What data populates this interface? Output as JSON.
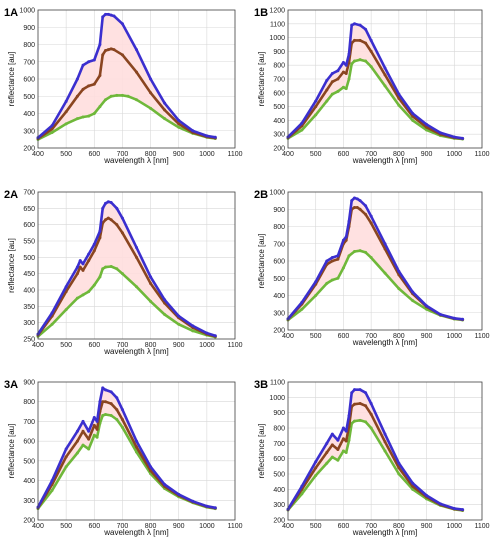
{
  "figure": {
    "xlabel": "wavelength λ  [nm]",
    "ylabel": "reflectance [au]"
  },
  "chart_data": [
    {
      "type": "line",
      "panel": "1A",
      "xlabel": "wavelength λ  [nm]",
      "ylabel": "reflectance [au]",
      "xlim": [
        400,
        1100
      ],
      "ylim": [
        200,
        1000
      ],
      "xticks": [
        400,
        500,
        600,
        700,
        800,
        900,
        1000,
        1100
      ],
      "yticks": [
        200,
        300,
        400,
        500,
        600,
        700,
        800,
        900,
        1000
      ],
      "grid": true,
      "band_fill": "#ffdede",
      "series": [
        {
          "color": "#3b2fcf",
          "x": [
            400,
            450,
            500,
            540,
            560,
            580,
            600,
            620,
            630,
            640,
            650,
            660,
            670,
            700,
            750,
            800,
            850,
            900,
            950,
            1000,
            1030
          ],
          "y": [
            260,
            330,
            470,
            600,
            680,
            700,
            710,
            800,
            960,
            975,
            975,
            970,
            965,
            920,
            770,
            600,
            460,
            360,
            300,
            270,
            262
          ]
        },
        {
          "color": "#8a4520",
          "x": [
            400,
            450,
            500,
            540,
            560,
            580,
            600,
            620,
            630,
            640,
            650,
            660,
            670,
            700,
            750,
            800,
            850,
            900,
            950,
            1000,
            1030
          ],
          "y": [
            255,
            310,
            410,
            500,
            540,
            560,
            570,
            620,
            740,
            765,
            770,
            775,
            770,
            740,
            640,
            520,
            420,
            340,
            290,
            265,
            258
          ]
        },
        {
          "color": "#6fb83a",
          "x": [
            400,
            450,
            500,
            540,
            560,
            580,
            600,
            620,
            640,
            660,
            680,
            700,
            720,
            750,
            800,
            850,
            900,
            950,
            1000,
            1030
          ],
          "y": [
            250,
            290,
            340,
            370,
            380,
            385,
            400,
            440,
            480,
            500,
            505,
            505,
            500,
            480,
            430,
            370,
            320,
            285,
            262,
            255
          ]
        }
      ]
    },
    {
      "type": "line",
      "panel": "1B",
      "xlabel": "wavelength λ  [nm]",
      "ylabel": "reflectance [au]",
      "xlim": [
        400,
        1100
      ],
      "ylim": [
        200,
        1200
      ],
      "xticks": [
        400,
        500,
        600,
        700,
        800,
        900,
        1000,
        1100
      ],
      "yticks": [
        200,
        300,
        400,
        500,
        600,
        700,
        800,
        900,
        1000,
        1100,
        1200
      ],
      "grid": true,
      "band_fill": "#ffdede",
      "series": [
        {
          "color": "#3b2fcf",
          "x": [
            400,
            450,
            500,
            540,
            560,
            580,
            600,
            610,
            620,
            630,
            640,
            660,
            680,
            700,
            750,
            800,
            850,
            900,
            950,
            1000,
            1030
          ],
          "y": [
            280,
            380,
            540,
            690,
            740,
            760,
            820,
            800,
            880,
            1090,
            1100,
            1090,
            1060,
            980,
            780,
            590,
            450,
            370,
            310,
            280,
            270
          ]
        },
        {
          "color": "#8a4520",
          "x": [
            400,
            450,
            500,
            540,
            560,
            580,
            600,
            610,
            620,
            630,
            640,
            660,
            680,
            700,
            750,
            800,
            850,
            900,
            950,
            1000,
            1030
          ],
          "y": [
            275,
            360,
            500,
            620,
            680,
            700,
            750,
            740,
            820,
            960,
            980,
            980,
            960,
            900,
            730,
            560,
            430,
            350,
            300,
            275,
            268
          ]
        },
        {
          "color": "#6fb83a",
          "x": [
            400,
            450,
            500,
            540,
            560,
            580,
            600,
            610,
            620,
            630,
            640,
            660,
            680,
            700,
            750,
            800,
            850,
            900,
            950,
            1000,
            1030
          ],
          "y": [
            270,
            330,
            440,
            540,
            590,
            610,
            640,
            630,
            700,
            810,
            830,
            840,
            830,
            790,
            650,
            510,
            400,
            330,
            290,
            270,
            265
          ]
        }
      ]
    },
    {
      "type": "line",
      "panel": "2A",
      "xlabel": "wavelength λ  [nm]",
      "ylabel": "reflectance [au]",
      "xlim": [
        400,
        1100
      ],
      "ylim": [
        250,
        700
      ],
      "xticks": [
        400,
        500,
        600,
        700,
        800,
        900,
        1000,
        1100
      ],
      "yticks": [
        250,
        300,
        350,
        400,
        450,
        500,
        550,
        600,
        650,
        700
      ],
      "grid": true,
      "band_fill": "#ffdede",
      "series": [
        {
          "color": "#3b2fcf",
          "x": [
            400,
            450,
            500,
            540,
            550,
            560,
            580,
            600,
            620,
            630,
            640,
            650,
            660,
            680,
            700,
            750,
            800,
            850,
            900,
            950,
            1000,
            1030
          ],
          "y": [
            265,
            330,
            410,
            470,
            490,
            480,
            510,
            540,
            580,
            650,
            665,
            670,
            668,
            650,
            620,
            530,
            440,
            370,
            320,
            290,
            268,
            260
          ]
        },
        {
          "color": "#8a4520",
          "x": [
            400,
            450,
            500,
            540,
            550,
            560,
            580,
            600,
            620,
            630,
            640,
            650,
            660,
            680,
            700,
            750,
            800,
            850,
            900,
            950,
            1000,
            1030
          ],
          "y": [
            262,
            320,
            395,
            450,
            470,
            460,
            490,
            520,
            560,
            605,
            615,
            620,
            615,
            600,
            575,
            500,
            420,
            360,
            315,
            285,
            265,
            258
          ]
        },
        {
          "color": "#6fb83a",
          "x": [
            400,
            450,
            500,
            540,
            560,
            580,
            600,
            620,
            630,
            640,
            660,
            680,
            700,
            750,
            800,
            850,
            900,
            950,
            1000,
            1030
          ],
          "y": [
            258,
            295,
            340,
            375,
            385,
            395,
            415,
            440,
            465,
            470,
            472,
            465,
            450,
            410,
            365,
            325,
            295,
            275,
            262,
            256
          ]
        }
      ]
    },
    {
      "type": "line",
      "panel": "2B",
      "xlabel": "wavelength λ  [nm]",
      "ylabel": "reflectance [au]",
      "xlim": [
        400,
        1100
      ],
      "ylim": [
        200,
        1000
      ],
      "xticks": [
        400,
        500,
        600,
        700,
        800,
        900,
        1000,
        1100
      ],
      "yticks": [
        200,
        300,
        400,
        500,
        600,
        700,
        800,
        900,
        1000
      ],
      "grid": true,
      "band_fill": "#ffdede",
      "series": [
        {
          "color": "#3b2fcf",
          "x": [
            400,
            450,
            500,
            540,
            560,
            580,
            600,
            610,
            620,
            630,
            640,
            650,
            660,
            680,
            700,
            750,
            800,
            850,
            900,
            950,
            1000,
            1030
          ],
          "y": [
            265,
            360,
            480,
            600,
            620,
            630,
            720,
            740,
            830,
            950,
            965,
            960,
            950,
            920,
            860,
            700,
            540,
            420,
            340,
            290,
            268,
            262
          ]
        },
        {
          "color": "#8a4520",
          "x": [
            400,
            450,
            500,
            540,
            560,
            580,
            600,
            610,
            620,
            630,
            640,
            650,
            660,
            680,
            700,
            750,
            800,
            850,
            900,
            950,
            1000,
            1030
          ],
          "y": [
            262,
            350,
            465,
            580,
            600,
            610,
            700,
            720,
            800,
            900,
            910,
            910,
            900,
            870,
            820,
            670,
            520,
            410,
            335,
            288,
            266,
            260
          ]
        },
        {
          "color": "#6fb83a",
          "x": [
            400,
            450,
            500,
            540,
            560,
            580,
            600,
            620,
            640,
            660,
            680,
            700,
            750,
            800,
            850,
            900,
            950,
            1000,
            1030
          ],
          "y": [
            258,
            320,
            400,
            470,
            490,
            500,
            560,
            630,
            655,
            660,
            650,
            620,
            530,
            440,
            370,
            320,
            285,
            264,
            258
          ]
        }
      ]
    },
    {
      "type": "line",
      "panel": "3A",
      "xlabel": "wavelength λ  [nm]",
      "ylabel": "reflectance [au]",
      "xlim": [
        400,
        1100
      ],
      "ylim": [
        200,
        900
      ],
      "xticks": [
        400,
        500,
        600,
        700,
        800,
        900,
        1000,
        1100
      ],
      "yticks": [
        200,
        300,
        400,
        500,
        600,
        700,
        800,
        900
      ],
      "grid": true,
      "band_fill": "#ffdede",
      "series": [
        {
          "color": "#3b2fcf",
          "x": [
            400,
            450,
            500,
            540,
            560,
            580,
            600,
            610,
            620,
            630,
            640,
            660,
            680,
            700,
            750,
            800,
            850,
            900,
            950,
            1000,
            1030
          ],
          "y": [
            265,
            400,
            560,
            650,
            700,
            650,
            720,
            700,
            800,
            870,
            860,
            850,
            820,
            760,
            600,
            470,
            380,
            330,
            295,
            270,
            262
          ]
        },
        {
          "color": "#8a4520",
          "x": [
            400,
            450,
            500,
            540,
            560,
            580,
            600,
            610,
            620,
            630,
            640,
            660,
            680,
            700,
            750,
            800,
            850,
            900,
            950,
            1000,
            1030
          ],
          "y": [
            262,
            380,
            520,
            600,
            650,
            610,
            680,
            660,
            750,
            800,
            800,
            790,
            760,
            710,
            570,
            450,
            370,
            325,
            292,
            268,
            260
          ]
        },
        {
          "color": "#6fb83a",
          "x": [
            400,
            450,
            500,
            540,
            560,
            580,
            600,
            610,
            620,
            630,
            640,
            660,
            680,
            700,
            750,
            800,
            850,
            900,
            950,
            1000,
            1030
          ],
          "y": [
            258,
            350,
            470,
            540,
            580,
            560,
            630,
            620,
            690,
            730,
            735,
            730,
            710,
            670,
            545,
            435,
            360,
            318,
            288,
            265,
            258
          ]
        }
      ]
    },
    {
      "type": "line",
      "panel": "3B",
      "xlabel": "wavelength λ  [nm]",
      "ylabel": "reflectance [au]",
      "xlim": [
        400,
        1100
      ],
      "ylim": [
        200,
        1100
      ],
      "xticks": [
        400,
        500,
        600,
        700,
        800,
        900,
        1000,
        1100
      ],
      "yticks": [
        200,
        300,
        400,
        500,
        600,
        700,
        800,
        900,
        1000,
        1100
      ],
      "grid": true,
      "band_fill": "#ffdede",
      "series": [
        {
          "color": "#3b2fcf",
          "x": [
            400,
            450,
            500,
            540,
            560,
            580,
            600,
            610,
            620,
            630,
            640,
            660,
            680,
            700,
            750,
            800,
            850,
            900,
            950,
            1000,
            1030
          ],
          "y": [
            270,
            420,
            580,
            700,
            760,
            720,
            800,
            780,
            880,
            1030,
            1050,
            1050,
            1030,
            960,
            760,
            570,
            440,
            360,
            305,
            275,
            268
          ]
        },
        {
          "color": "#8a4520",
          "x": [
            400,
            450,
            500,
            540,
            560,
            580,
            600,
            610,
            620,
            630,
            640,
            660,
            680,
            700,
            750,
            800,
            850,
            900,
            950,
            1000,
            1030
          ],
          "y": [
            268,
            400,
            540,
            640,
            690,
            660,
            730,
            715,
            810,
            940,
            955,
            960,
            945,
            890,
            710,
            540,
            420,
            350,
            300,
            272,
            265
          ]
        },
        {
          "color": "#6fb83a",
          "x": [
            400,
            450,
            500,
            540,
            560,
            580,
            600,
            610,
            620,
            630,
            640,
            660,
            680,
            700,
            750,
            800,
            850,
            900,
            950,
            1000,
            1030
          ],
          "y": [
            265,
            370,
            490,
            570,
            610,
            590,
            650,
            640,
            720,
            830,
            845,
            850,
            840,
            800,
            650,
            500,
            400,
            338,
            295,
            270,
            262
          ]
        }
      ]
    }
  ]
}
